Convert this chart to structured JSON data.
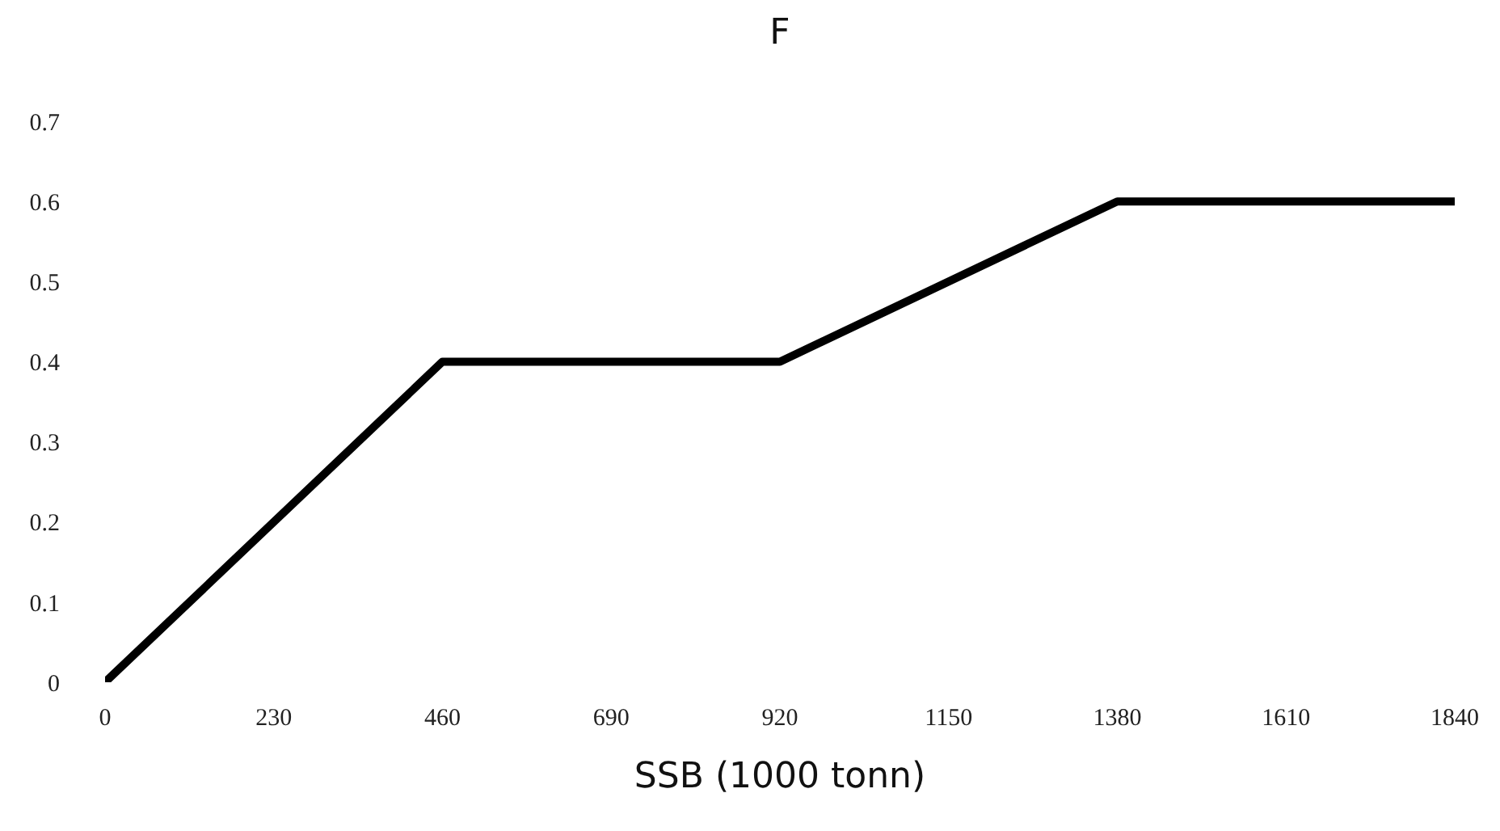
{
  "chart_data": {
    "type": "line",
    "title": "F",
    "xlabel": "SSB (1000 tonn)",
    "x": [
      0,
      460,
      920,
      1380,
      1840
    ],
    "series": [
      {
        "color": "#000000",
        "values": [
          0,
          0.4,
          0.4,
          0.6,
          0.6
        ]
      }
    ],
    "xlim": [
      0,
      1840
    ],
    "xticks": [
      0,
      230,
      460,
      690,
      920,
      1150,
      1380,
      1610,
      1840
    ],
    "ylim": [
      0,
      0.7
    ],
    "yticks": [
      0,
      0.1,
      0.2,
      0.3,
      0.4,
      0.5,
      0.6,
      0.7
    ],
    "grid": false,
    "legend": false,
    "marker": "none",
    "line_style": "solid"
  }
}
